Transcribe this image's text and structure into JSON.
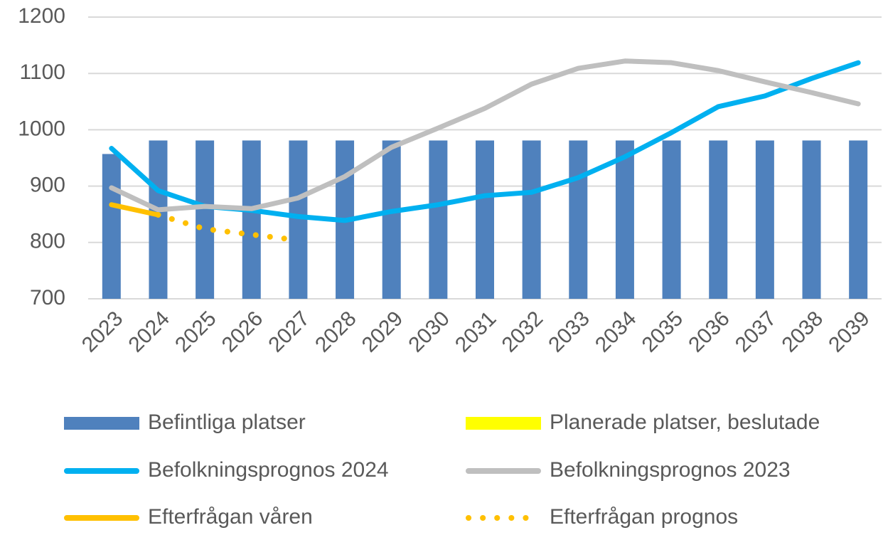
{
  "chart_data": {
    "type": "bar",
    "categories": [
      "2023",
      "2024",
      "2025",
      "2026",
      "2027",
      "2028",
      "2029",
      "2030",
      "2031",
      "2032",
      "2033",
      "2034",
      "2035",
      "2036",
      "2037",
      "2038",
      "2039"
    ],
    "series": [
      {
        "name": "Befintliga platser",
        "type": "bar",
        "color": "#4f81bd",
        "values": [
          957,
          981,
          981,
          981,
          981,
          981,
          981,
          981,
          981,
          981,
          981,
          981,
          981,
          981,
          981,
          981,
          981
        ]
      },
      {
        "name": "Planerade platser, beslutade",
        "type": "bar",
        "color": "#ffff00",
        "values": [
          0,
          0,
          0,
          0,
          0,
          0,
          0,
          0,
          0,
          0,
          0,
          0,
          0,
          0,
          0,
          0,
          0
        ]
      },
      {
        "name": "Befolkningsprognos 2024",
        "type": "line",
        "color": "#00b0f0",
        "values": [
          967,
          892,
          864,
          857,
          846,
          839,
          855,
          867,
          883,
          889,
          915,
          952,
          995,
          1041,
          1060,
          1091,
          1119
        ]
      },
      {
        "name": "Befolkningsprognos 2023",
        "type": "line",
        "color": "#bfbfbf",
        "values": [
          897,
          858,
          864,
          860,
          879,
          917,
          969,
          1003,
          1038,
          1081,
          1109,
          1122,
          1119,
          1105,
          1085,
          1066,
          1046
        ]
      },
      {
        "name": "Efterfrågan våren",
        "type": "line",
        "color": "#ffc000",
        "values": [
          867,
          849,
          null,
          null,
          null,
          null,
          null,
          null,
          null,
          null,
          null,
          null,
          null,
          null,
          null,
          null,
          null
        ]
      },
      {
        "name": "Efterfrågan prognos",
        "type": "line",
        "dashed": true,
        "color": "#ffc000",
        "values": [
          null,
          849,
          824,
          814,
          804,
          null,
          null,
          null,
          null,
          null,
          null,
          null,
          null,
          null,
          null,
          null,
          null
        ]
      }
    ],
    "ylim": [
      700,
      1200
    ],
    "yticks": [
      700,
      800,
      900,
      1000,
      1100,
      1200
    ],
    "grid": true
  }
}
